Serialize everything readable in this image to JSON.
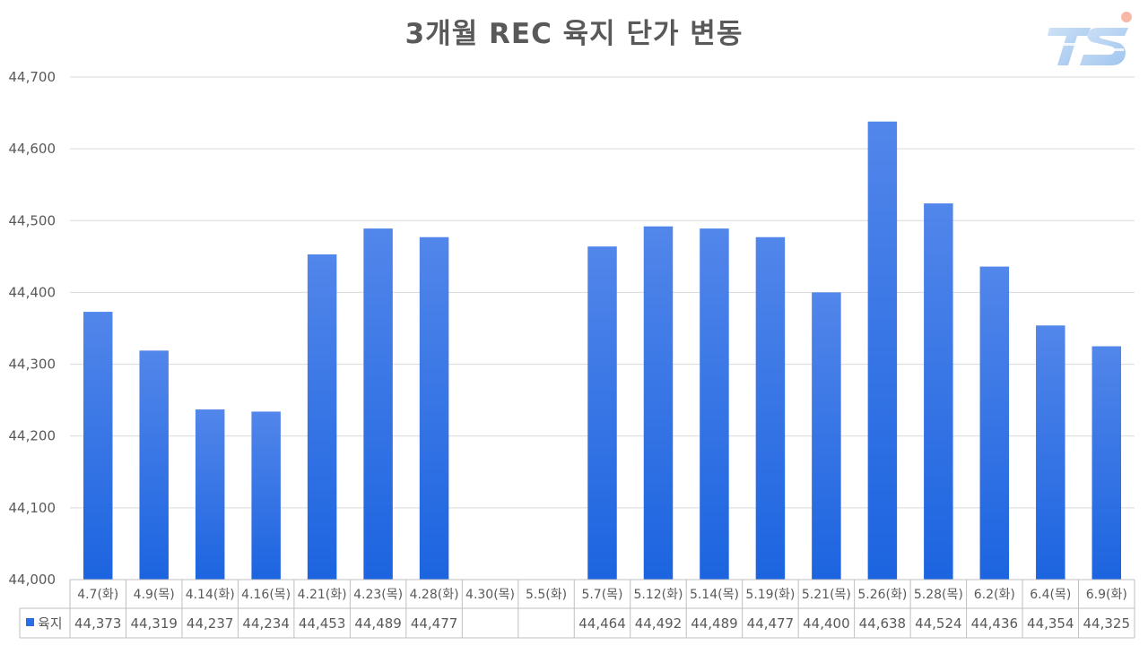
{
  "chart_data": {
    "type": "bar",
    "title": "3개월 REC 육지 단가 변동",
    "categories": [
      "4.7(화)",
      "4.9(목)",
      "4.14(화)",
      "4.16(목)",
      "4.21(화)",
      "4.23(목)",
      "4.28(화)",
      "4.30(목)",
      "5.5(화)",
      "5.7(목)",
      "5.12(화)",
      "5.14(목)",
      "5.19(화)",
      "5.21(목)",
      "5.26(화)",
      "5.28(목)",
      "6.2(화)",
      "6.4(목)",
      "6.9(화)"
    ],
    "series": [
      {
        "name": "육지",
        "values": [
          44373,
          44319,
          44237,
          44234,
          44453,
          44489,
          44477,
          null,
          null,
          44464,
          44492,
          44489,
          44477,
          44400,
          44638,
          44524,
          44436,
          44354,
          44325
        ],
        "labels": [
          "44,373",
          "44,319",
          "44,237",
          "44,234",
          "44,453",
          "44,489",
          "44,477",
          "",
          "",
          "44,464",
          "44,492",
          "44,489",
          "44,477",
          "44,400",
          "44,638",
          "44,524",
          "44,436",
          "44,354",
          "44,325"
        ],
        "color": "#2b6de8"
      }
    ],
    "yticks": [
      "44,000",
      "44,100",
      "44,200",
      "44,300",
      "44,400",
      "44,500",
      "44,600",
      "44,700"
    ],
    "ylim": [
      44000,
      44700
    ],
    "grid": true,
    "legend": "data-table",
    "data_table": true
  },
  "logo": {
    "text": "TS",
    "icon": "ts-logo-icon"
  }
}
